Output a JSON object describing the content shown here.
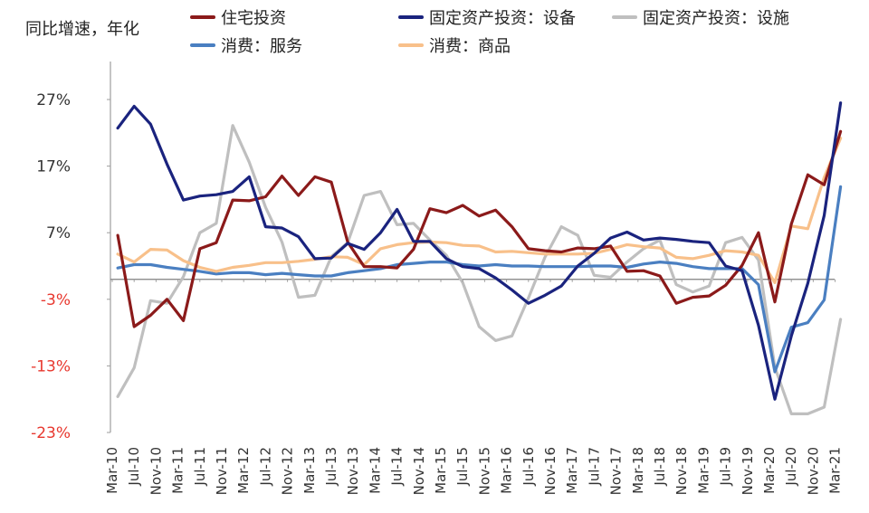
{
  "chart_data": {
    "type": "line",
    "ylabel": "同比增速，年化",
    "ylim": [
      -23,
      32
    ],
    "yticks": [
      "27%",
      "17%",
      "7%",
      "-3%",
      "-13%",
      "-23%"
    ],
    "ytick_values": [
      27,
      17,
      7,
      -3,
      -13,
      -23
    ],
    "ytick_colors": [
      "#333333",
      "#333333",
      "#333333",
      "#e8382f",
      "#e8382f",
      "#e8382f"
    ],
    "xtick_labels": [
      "Mar-10",
      "Jul-10",
      "Nov-10",
      "Mar-11",
      "Jul-11",
      "Nov-11",
      "Mar-12",
      "Jul-12",
      "Nov-12",
      "Mar-13",
      "Jul-13",
      "Nov-13",
      "Mar-14",
      "Jul-14",
      "Nov-14",
      "Mar-15",
      "Jul-15",
      "Nov-15",
      "Mar-16",
      "Jul-16",
      "Nov-16",
      "Mar-17",
      "Jul-17",
      "Nov-17",
      "Mar-18",
      "Jul-18",
      "Nov-18",
      "Mar-19",
      "Jul-19",
      "Nov-19",
      "Mar-20",
      "Jul-20",
      "Nov-20",
      "Mar-21"
    ],
    "x": [
      "Jun-10",
      "Sep-10",
      "Dec-10",
      "Mar-11",
      "Jun-11",
      "Sep-11",
      "Dec-11",
      "Mar-12",
      "Jun-12",
      "Sep-12",
      "Dec-12",
      "Mar-13",
      "Jun-13",
      "Sep-13",
      "Dec-13",
      "Mar-14",
      "Jun-14",
      "Sep-14",
      "Dec-14",
      "Mar-15",
      "Jun-15",
      "Sep-15",
      "Dec-15",
      "Mar-16",
      "Jun-16",
      "Sep-16",
      "Dec-16",
      "Mar-17",
      "Jun-17",
      "Sep-17",
      "Dec-17",
      "Mar-18",
      "Jun-18",
      "Sep-18",
      "Dec-18",
      "Mar-19",
      "Jun-19",
      "Sep-19",
      "Dec-19",
      "Mar-20",
      "Jun-20",
      "Sep-20",
      "Dec-20",
      "Mar-21",
      "Jun-21"
    ],
    "series": [
      {
        "name": "住宅投资",
        "color": "#8b1a1a",
        "values": [
          6.6,
          -7.1,
          -5.4,
          -3.0,
          -6.2,
          4.6,
          5.5,
          11.9,
          11.8,
          12.4,
          15.5,
          12.6,
          15.4,
          14.6,
          5.6,
          1.9,
          1.9,
          1.7,
          4.5,
          10.6,
          10.0,
          11.1,
          9.5,
          10.4,
          7.9,
          4.6,
          4.3,
          4.1,
          4.7,
          4.6,
          5.0,
          1.2,
          1.3,
          0.5,
          -3.6,
          -2.7,
          -2.5,
          -0.9,
          2.1,
          7.0,
          -3.4,
          8.3,
          15.7,
          14.2,
          22.2
        ]
      },
      {
        "name": "固定资产投资：设备",
        "color": "#1a237e",
        "values": [
          22.7,
          26.0,
          23.3,
          17.3,
          11.9,
          12.5,
          12.7,
          13.2,
          15.4,
          7.9,
          7.7,
          6.4,
          3.1,
          3.2,
          5.4,
          4.5,
          7.0,
          10.5,
          5.7,
          5.7,
          3.1,
          1.9,
          1.6,
          0.2,
          -1.6,
          -3.6,
          -2.4,
          -1.0,
          2.0,
          3.9,
          6.2,
          7.1,
          5.9,
          6.2,
          6.0,
          5.7,
          5.5,
          2.0,
          1.3,
          -6.9,
          -18.0,
          -8.5,
          -0.6,
          9.6,
          26.5
        ]
      },
      {
        "name": "固定资产投资：设施",
        "color": "#bfbfbf",
        "values": [
          -17.6,
          -13.3,
          -3.2,
          -3.6,
          0.4,
          7.0,
          8.4,
          23.1,
          17.6,
          10.8,
          5.6,
          -2.7,
          -2.4,
          3.4,
          5.5,
          12.6,
          13.2,
          8.2,
          8.4,
          5.9,
          3.6,
          -0.5,
          -7.1,
          -9.2,
          -8.5,
          -2.8,
          3.3,
          7.9,
          6.6,
          0.6,
          0.3,
          2.6,
          4.6,
          5.9,
          -0.8,
          -1.9,
          -1.0,
          5.5,
          6.3,
          2.9,
          -13.2,
          -20.2,
          -20.2,
          -19.2,
          -6.0
        ]
      },
      {
        "name": "消费：服务",
        "color": "#4a7fc1",
        "values": [
          1.7,
          2.2,
          2.2,
          1.8,
          1.5,
          1.2,
          0.8,
          1.0,
          1.0,
          0.7,
          0.9,
          0.7,
          0.5,
          0.5,
          1.0,
          1.3,
          1.6,
          2.2,
          2.4,
          2.6,
          2.6,
          2.2,
          2.0,
          2.2,
          2.0,
          2.0,
          1.9,
          1.9,
          1.9,
          2.0,
          2.0,
          1.8,
          2.3,
          2.6,
          2.4,
          1.9,
          1.6,
          1.6,
          1.6,
          -0.8,
          -13.9,
          -7.2,
          -6.5,
          -3.1,
          13.9
        ]
      },
      {
        "name": "消费：商品",
        "color": "#f8c08a",
        "values": [
          3.8,
          2.6,
          4.5,
          4.4,
          2.8,
          1.8,
          1.2,
          1.8,
          2.1,
          2.5,
          2.5,
          2.7,
          3.0,
          3.4,
          3.3,
          2.2,
          4.6,
          5.2,
          5.5,
          5.6,
          5.5,
          5.1,
          5.0,
          4.1,
          4.2,
          4.0,
          3.8,
          3.8,
          3.8,
          3.9,
          4.5,
          5.2,
          4.9,
          4.7,
          3.3,
          3.1,
          3.6,
          4.3,
          4.1,
          3.6,
          -0.5,
          8.0,
          7.6,
          15.3,
          21.2
        ]
      }
    ]
  }
}
